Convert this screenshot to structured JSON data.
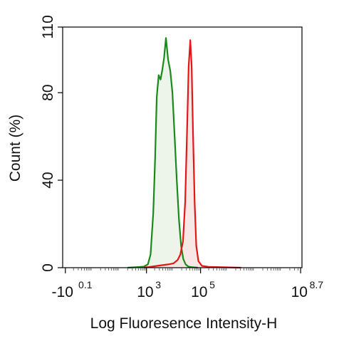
{
  "chart_data": {
    "type": "area",
    "title": "",
    "xlabel": "Log Fluoresence Intensity-H",
    "ylabel": "Count  (%)",
    "x_scale": "log",
    "ylim": [
      0,
      110
    ],
    "y_ticks": [
      {
        "value": 0,
        "label": "0"
      },
      {
        "value": 40,
        "label": "40"
      },
      {
        "value": 80,
        "label": "80"
      },
      {
        "value": 110,
        "label": "110"
      }
    ],
    "x_ticks": [
      {
        "base": "-10",
        "exp": "0.1",
        "log10": 0.0
      },
      {
        "base": "10",
        "exp": "3",
        "log10": 3.0
      },
      {
        "base": "10",
        "exp": "5",
        "log10": 5.0
      },
      {
        "base": "10",
        "exp": "8.7",
        "log10": 8.7
      }
    ],
    "xlim_log10": [
      -0.1,
      8.75
    ],
    "grid": false,
    "series": [
      {
        "color": "#1a8a1a",
        "fill": "#e7f1e4",
        "points": [
          [
            2.3,
            0
          ],
          [
            2.7,
            0.3
          ],
          [
            2.9,
            0.5
          ],
          [
            3.05,
            1.5
          ],
          [
            3.15,
            6
          ],
          [
            3.25,
            25
          ],
          [
            3.32,
            50
          ],
          [
            3.38,
            78
          ],
          [
            3.45,
            88
          ],
          [
            3.52,
            86
          ],
          [
            3.58,
            90
          ],
          [
            3.65,
            96
          ],
          [
            3.72,
            105
          ],
          [
            3.8,
            95
          ],
          [
            3.88,
            90
          ],
          [
            3.96,
            80
          ],
          [
            4.04,
            60
          ],
          [
            4.12,
            40
          ],
          [
            4.2,
            22
          ],
          [
            4.28,
            10
          ],
          [
            4.36,
            4
          ],
          [
            4.45,
            1.5
          ],
          [
            4.55,
            0.5
          ],
          [
            4.7,
            0.2
          ],
          [
            4.9,
            0
          ]
        ]
      },
      {
        "color": "#e01818",
        "fill": "#f6e0dc",
        "points": [
          [
            2.9,
            0
          ],
          [
            3.2,
            0.5
          ],
          [
            3.5,
            1
          ],
          [
            3.8,
            1.5
          ],
          [
            4.0,
            2
          ],
          [
            4.15,
            3.5
          ],
          [
            4.25,
            6
          ],
          [
            4.35,
            12
          ],
          [
            4.43,
            30
          ],
          [
            4.5,
            62
          ],
          [
            4.56,
            92
          ],
          [
            4.62,
            104
          ],
          [
            4.67,
            92
          ],
          [
            4.72,
            62
          ],
          [
            4.78,
            30
          ],
          [
            4.84,
            10
          ],
          [
            4.92,
            3
          ],
          [
            5.05,
            0.8
          ],
          [
            5.3,
            0.4
          ],
          [
            5.8,
            0.2
          ],
          [
            6.5,
            0
          ]
        ]
      }
    ]
  }
}
